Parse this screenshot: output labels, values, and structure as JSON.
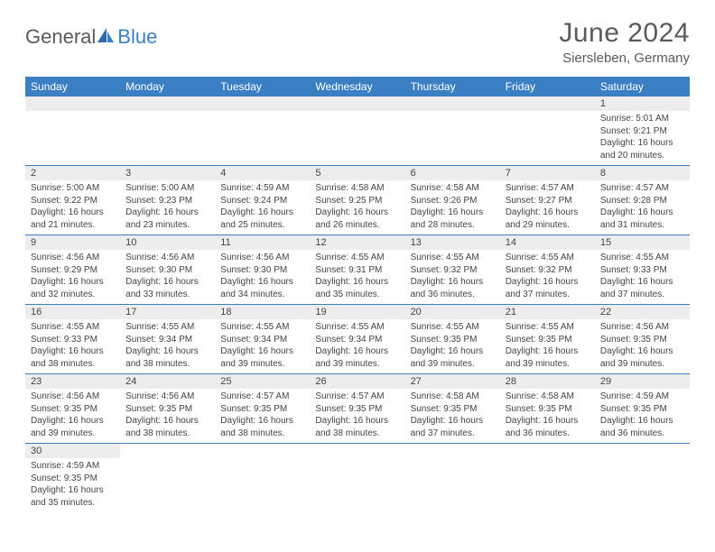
{
  "brand": {
    "general": "General",
    "blue": "Blue"
  },
  "title": {
    "month": "June 2024",
    "location": "Siersleben, Germany"
  },
  "colors": {
    "accent": "#3a7fc4",
    "header_bg": "#3a7fc4",
    "header_text": "#ffffff",
    "daynum_bg": "#ededed",
    "text": "#444444",
    "border": "#3a7fc4"
  },
  "weekdays": [
    "Sunday",
    "Monday",
    "Tuesday",
    "Wednesday",
    "Thursday",
    "Friday",
    "Saturday"
  ],
  "weeks": [
    [
      null,
      null,
      null,
      null,
      null,
      null,
      {
        "n": "1",
        "sr": "5:01 AM",
        "ss": "9:21 PM",
        "dl": "16 hours and 20 minutes."
      }
    ],
    [
      {
        "n": "2",
        "sr": "5:00 AM",
        "ss": "9:22 PM",
        "dl": "16 hours and 21 minutes."
      },
      {
        "n": "3",
        "sr": "5:00 AM",
        "ss": "9:23 PM",
        "dl": "16 hours and 23 minutes."
      },
      {
        "n": "4",
        "sr": "4:59 AM",
        "ss": "9:24 PM",
        "dl": "16 hours and 25 minutes."
      },
      {
        "n": "5",
        "sr": "4:58 AM",
        "ss": "9:25 PM",
        "dl": "16 hours and 26 minutes."
      },
      {
        "n": "6",
        "sr": "4:58 AM",
        "ss": "9:26 PM",
        "dl": "16 hours and 28 minutes."
      },
      {
        "n": "7",
        "sr": "4:57 AM",
        "ss": "9:27 PM",
        "dl": "16 hours and 29 minutes."
      },
      {
        "n": "8",
        "sr": "4:57 AM",
        "ss": "9:28 PM",
        "dl": "16 hours and 31 minutes."
      }
    ],
    [
      {
        "n": "9",
        "sr": "4:56 AM",
        "ss": "9:29 PM",
        "dl": "16 hours and 32 minutes."
      },
      {
        "n": "10",
        "sr": "4:56 AM",
        "ss": "9:30 PM",
        "dl": "16 hours and 33 minutes."
      },
      {
        "n": "11",
        "sr": "4:56 AM",
        "ss": "9:30 PM",
        "dl": "16 hours and 34 minutes."
      },
      {
        "n": "12",
        "sr": "4:55 AM",
        "ss": "9:31 PM",
        "dl": "16 hours and 35 minutes."
      },
      {
        "n": "13",
        "sr": "4:55 AM",
        "ss": "9:32 PM",
        "dl": "16 hours and 36 minutes."
      },
      {
        "n": "14",
        "sr": "4:55 AM",
        "ss": "9:32 PM",
        "dl": "16 hours and 37 minutes."
      },
      {
        "n": "15",
        "sr": "4:55 AM",
        "ss": "9:33 PM",
        "dl": "16 hours and 37 minutes."
      }
    ],
    [
      {
        "n": "16",
        "sr": "4:55 AM",
        "ss": "9:33 PM",
        "dl": "16 hours and 38 minutes."
      },
      {
        "n": "17",
        "sr": "4:55 AM",
        "ss": "9:34 PM",
        "dl": "16 hours and 38 minutes."
      },
      {
        "n": "18",
        "sr": "4:55 AM",
        "ss": "9:34 PM",
        "dl": "16 hours and 39 minutes."
      },
      {
        "n": "19",
        "sr": "4:55 AM",
        "ss": "9:34 PM",
        "dl": "16 hours and 39 minutes."
      },
      {
        "n": "20",
        "sr": "4:55 AM",
        "ss": "9:35 PM",
        "dl": "16 hours and 39 minutes."
      },
      {
        "n": "21",
        "sr": "4:55 AM",
        "ss": "9:35 PM",
        "dl": "16 hours and 39 minutes."
      },
      {
        "n": "22",
        "sr": "4:56 AM",
        "ss": "9:35 PM",
        "dl": "16 hours and 39 minutes."
      }
    ],
    [
      {
        "n": "23",
        "sr": "4:56 AM",
        "ss": "9:35 PM",
        "dl": "16 hours and 39 minutes."
      },
      {
        "n": "24",
        "sr": "4:56 AM",
        "ss": "9:35 PM",
        "dl": "16 hours and 38 minutes."
      },
      {
        "n": "25",
        "sr": "4:57 AM",
        "ss": "9:35 PM",
        "dl": "16 hours and 38 minutes."
      },
      {
        "n": "26",
        "sr": "4:57 AM",
        "ss": "9:35 PM",
        "dl": "16 hours and 38 minutes."
      },
      {
        "n": "27",
        "sr": "4:58 AM",
        "ss": "9:35 PM",
        "dl": "16 hours and 37 minutes."
      },
      {
        "n": "28",
        "sr": "4:58 AM",
        "ss": "9:35 PM",
        "dl": "16 hours and 36 minutes."
      },
      {
        "n": "29",
        "sr": "4:59 AM",
        "ss": "9:35 PM",
        "dl": "16 hours and 36 minutes."
      }
    ],
    [
      {
        "n": "30",
        "sr": "4:59 AM",
        "ss": "9:35 PM",
        "dl": "16 hours and 35 minutes."
      },
      null,
      null,
      null,
      null,
      null,
      null
    ]
  ],
  "labels": {
    "sunrise": "Sunrise:",
    "sunset": "Sunset:",
    "daylight": "Daylight:"
  }
}
